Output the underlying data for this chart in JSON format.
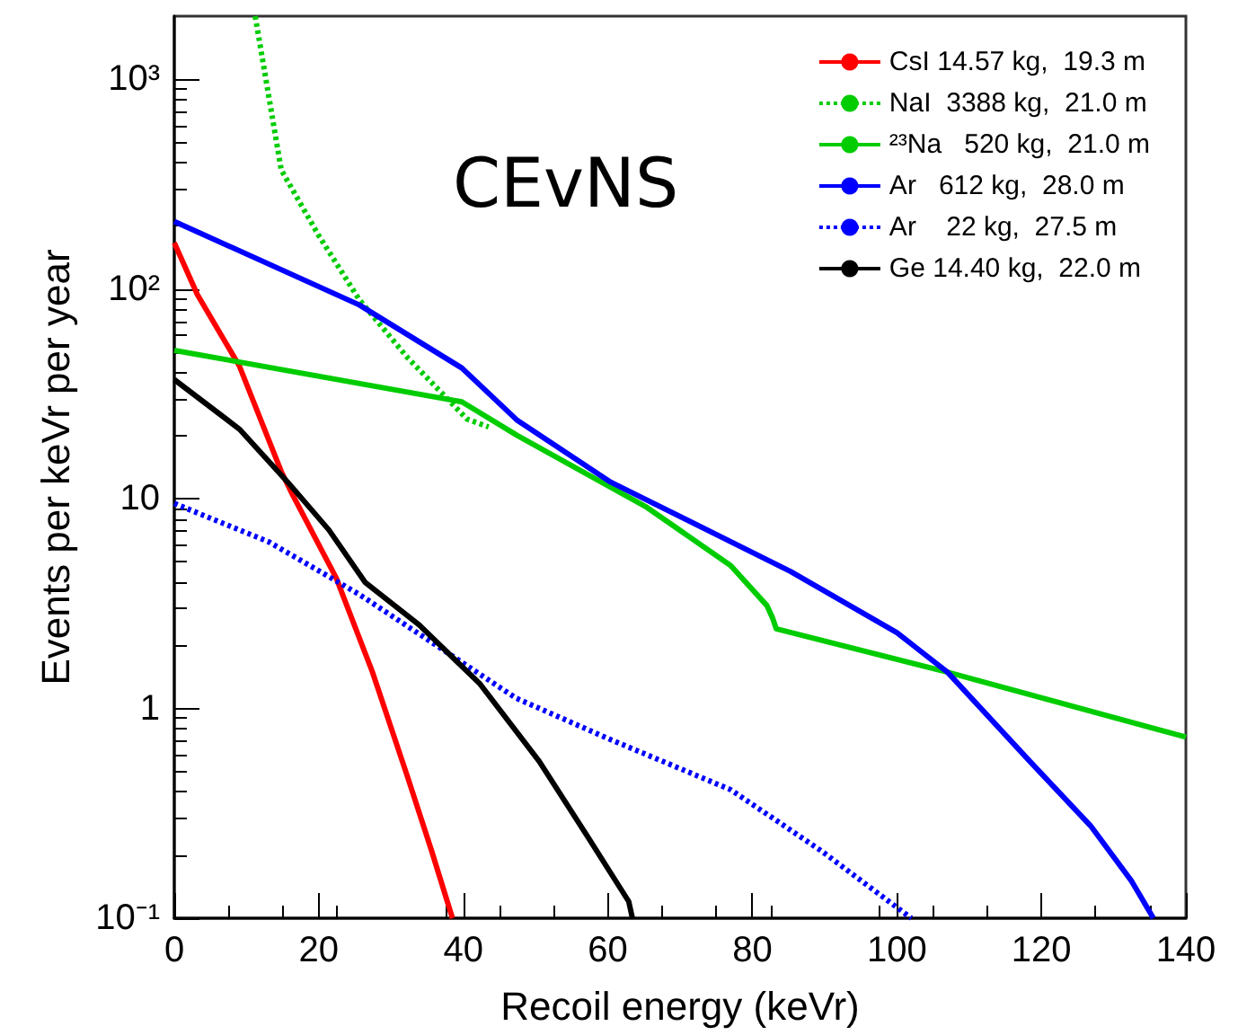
{
  "chart_data": {
    "type": "line",
    "title": "CEvNS",
    "xlabel": "Recoil energy (keVr)",
    "ylabel": "Events per keVr per year",
    "xlim": [
      0,
      140
    ],
    "xticks": [
      0,
      20,
      40,
      60,
      80,
      100,
      120,
      140
    ],
    "ylim": [
      0.1,
      2000
    ],
    "yticks": [
      {
        "value": 0.1,
        "label": "10⁻¹"
      },
      1,
      10,
      {
        "value": 100,
        "label": "10²"
      },
      {
        "value": 1000,
        "label": "10³"
      }
    ],
    "log": "y",
    "grid": false,
    "legend": "top right",
    "marker": "none",
    "series": [
      {
        "name": "CsI 14.57 kg,  19.3 m",
        "color": "#ff0000",
        "line_style": "solid",
        "x": [
          0,
          3.2,
          9,
          14.8,
          16.4,
          22.4,
          27.4,
          32.3,
          35.6,
          38.5
        ],
        "values": [
          166,
          94,
          43,
          13.5,
          10.4,
          4.2,
          1.5,
          0.47,
          0.21,
          0.1
        ]
      },
      {
        "name": "NaI  3388 kg,  21.0 m",
        "color": "#00cc00",
        "line_style": "dotted",
        "x": [
          11.2,
          14.8,
          19.9,
          25.6,
          32.3,
          40.5,
          43.5
        ],
        "values": [
          2000,
          370,
          182,
          89,
          47,
          24,
          22
        ]
      },
      {
        "name": "²³Na   520 kg,  21.0 m",
        "color": "#00cc00",
        "line_style": "solid",
        "x": [
          0,
          39.8,
          47.5,
          65.4,
          77,
          82,
          82.8,
          83.3,
          107,
          140
        ],
        "values": [
          51,
          29,
          20,
          9.1,
          4.8,
          3.1,
          2.7,
          2.4,
          1.49,
          0.73
        ]
      },
      {
        "name": "Ar   612 kg,  28.0 m",
        "color": "#0000ff",
        "line_style": "solid",
        "x": [
          0,
          25.6,
          39.8,
          47.5,
          60.4,
          85.3,
          100,
          107,
          118.4,
          126.8,
          132.5,
          135.5
        ],
        "values": [
          210,
          84,
          42,
          23.6,
          12,
          4.5,
          2.3,
          1.49,
          0.56,
          0.276,
          0.15,
          0.1
        ]
      },
      {
        "name": "Ar    22 kg,  27.5 m",
        "color": "#0000ff",
        "line_style": "dotted",
        "x": [
          0,
          13.2,
          25.6,
          47.3,
          60.4,
          77,
          89.5,
          102
        ],
        "values": [
          9.5,
          6.2,
          3.5,
          1.12,
          0.71,
          0.41,
          0.21,
          0.1
        ]
      },
      {
        "name": "Ge 14.40 kg,  22.0 m",
        "color": "#000000",
        "line_style": "solid",
        "x": [
          0,
          9,
          15.7,
          21.4,
          26.4,
          33.9,
          42.3,
          50.5,
          57.2,
          62.9,
          63.4
        ],
        "values": [
          37,
          21.5,
          12,
          7.1,
          4.0,
          2.5,
          1.31,
          0.56,
          0.245,
          0.12,
          0.1
        ]
      }
    ]
  }
}
